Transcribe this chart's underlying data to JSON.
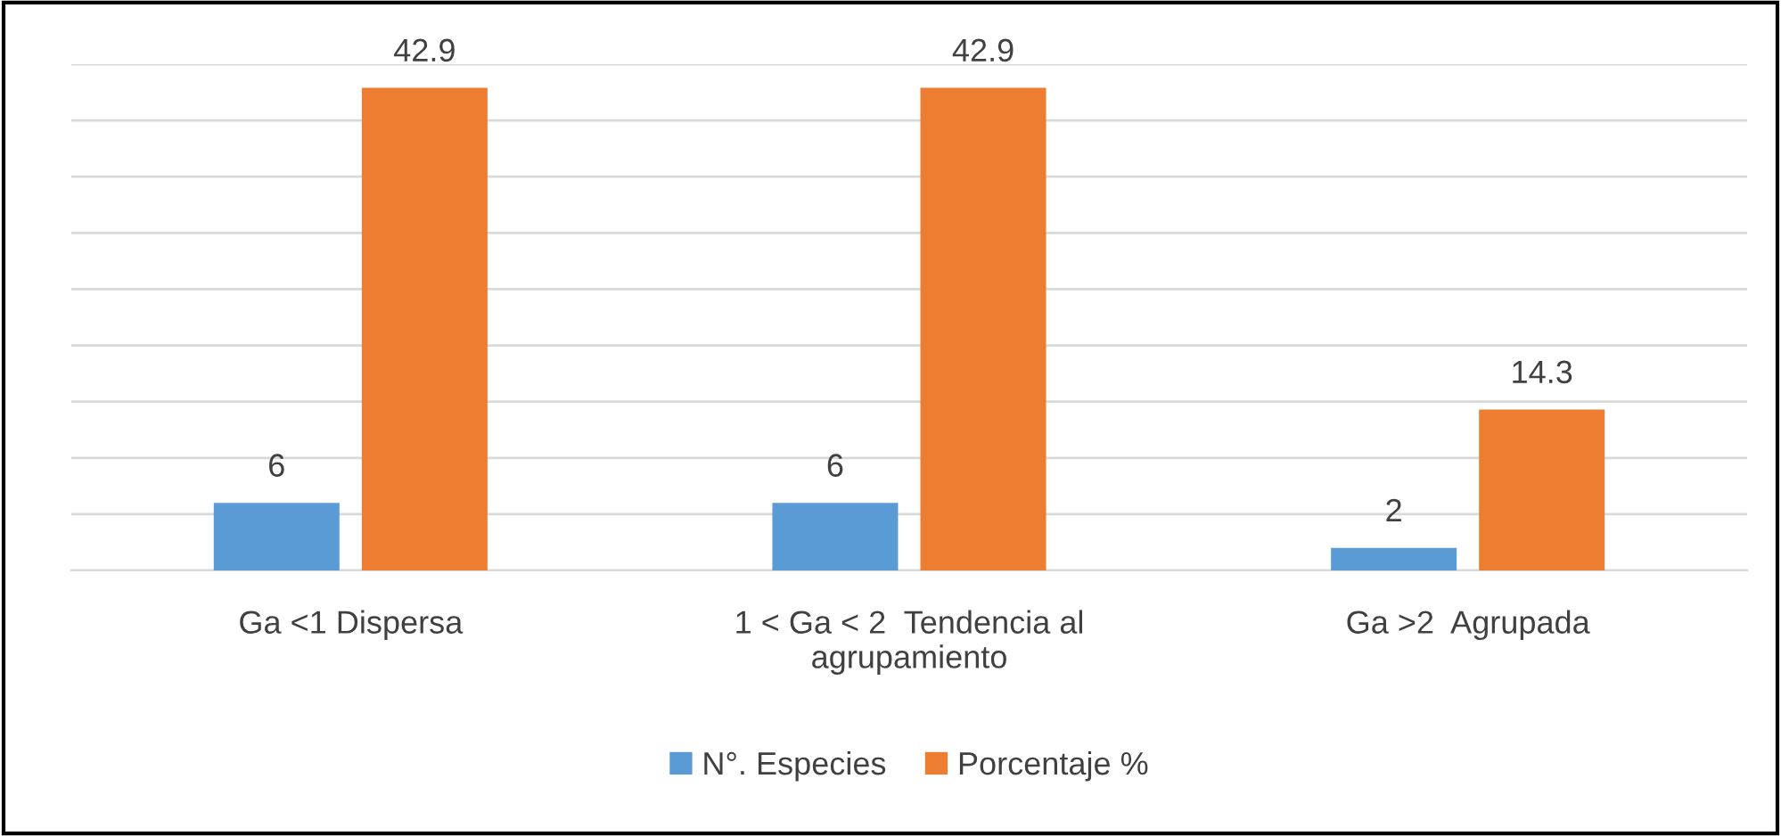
{
  "chart_data": {
    "type": "bar",
    "categories": [
      "Ga <1 Dispersa",
      "1 < Ga < 2  Tendencia al\nagrupamiento",
      "Ga >2  Agrupada"
    ],
    "series": [
      {
        "name": "N°. Especies",
        "color": "#5b9bd5",
        "values": [
          6,
          6,
          2
        ]
      },
      {
        "name": "Porcentaje %",
        "color": "#ed7d31",
        "values": [
          42.9,
          42.9,
          14.3
        ]
      }
    ],
    "data_labels": true,
    "ylim": [
      0,
      45
    ],
    "yticks": [
      {
        "value": 0,
        "label": null
      },
      {
        "value": 5,
        "label": null
      },
      {
        "value": 10,
        "label": null
      },
      {
        "value": 15,
        "label": null
      },
      {
        "value": 20,
        "label": null
      },
      {
        "value": 25,
        "label": null
      },
      {
        "value": 30,
        "label": null
      },
      {
        "value": 35,
        "label": null
      },
      {
        "value": 40,
        "label": null
      },
      {
        "value": 45,
        "label": null
      }
    ],
    "grid": "y",
    "legend": "bottom",
    "tick_labels": "x"
  }
}
